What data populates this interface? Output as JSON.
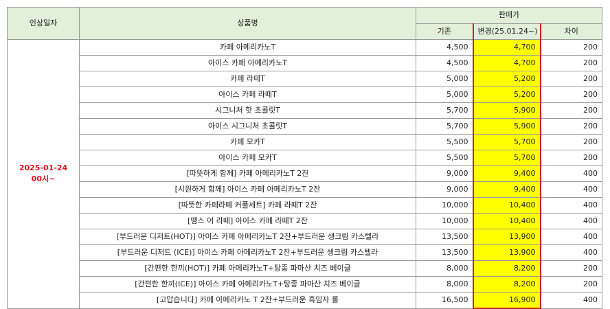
{
  "headers": {
    "date": "인상일자",
    "product": "상품명",
    "price": "판매가",
    "old": "기존",
    "new": "변경(25.01.24~)",
    "diff": "차이"
  },
  "date_cell": {
    "line1": "2025-01-24",
    "line2": "00시~"
  },
  "rows": [
    {
      "name": "카페 아메리카노T",
      "old": "4,500",
      "new": "4,700",
      "diff": "200"
    },
    {
      "name": "아이스 카페 아메리카노T",
      "old": "4,500",
      "new": "4,700",
      "diff": "200"
    },
    {
      "name": "카페 라떼T",
      "old": "5,000",
      "new": "5,200",
      "diff": "200"
    },
    {
      "name": "아이스 카페 라떼T",
      "old": "5,000",
      "new": "5,200",
      "diff": "200"
    },
    {
      "name": "시그니처 핫 초콜릿T",
      "old": "5,700",
      "new": "5,900",
      "diff": "200"
    },
    {
      "name": "아이스 시그니처 초콜릿T",
      "old": "5,700",
      "new": "5,900",
      "diff": "200"
    },
    {
      "name": "카페 모카T",
      "old": "5,500",
      "new": "5,700",
      "diff": "200"
    },
    {
      "name": "아이스 카페 모카T",
      "old": "5,500",
      "new": "5,700",
      "diff": "200"
    },
    {
      "name": "[따뜻하게 함께]  카페 아메리카노T 2잔",
      "old": "9,000",
      "new": "9,400",
      "diff": "400"
    },
    {
      "name": "[시원하게 함께] 아이스 카페 아메리카노T 2잔",
      "old": "9,000",
      "new": "9,400",
      "diff": "400"
    },
    {
      "name": "[따뜻한 카페라떼 커플세트] 카페 라떼T 2잔",
      "old": "10,000",
      "new": "10,400",
      "diff": "400"
    },
    {
      "name": "[땡스 어 라떼] 아이스 카페 라떼T 2잔",
      "old": "10,000",
      "new": "10,400",
      "diff": "400"
    },
    {
      "name": "[부드러운 디저트(HOT)] 아이스 카페 아메리카노T 2잔+부드러운 생크림 카스텔라",
      "old": "13,500",
      "new": "13,900",
      "diff": "400"
    },
    {
      "name": "[부드러운 디저트 (ICE)] 아이스 카페 아메리카노T 2잔+부드러운 생크림 카스텔라",
      "old": "13,500",
      "new": "13,900",
      "diff": "400"
    },
    {
      "name": "[간편한 한끼(HOT)] 카페 아메리카노T+탕종 파마산 치즈 베이글",
      "old": "8,000",
      "new": "8,200",
      "diff": "200"
    },
    {
      "name": "[간편한 한끼(ICE)] 아이스 카페 아메리카노T+탕종 파마산 치즈 베이글",
      "old": "8,000",
      "new": "8,200",
      "diff": "200"
    },
    {
      "name": "[고맙습니다] 카페 아메리카노 T 2잔+부드러운 흑임자 롤",
      "old": "16,500",
      "new": "16,900",
      "diff": "400"
    }
  ]
}
